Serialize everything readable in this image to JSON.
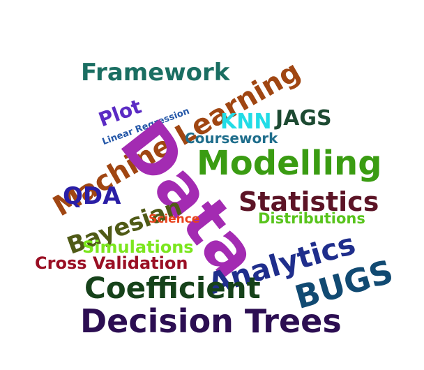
{
  "words": {
    "framework": {
      "text": "Framework",
      "color": "#1a6e62"
    },
    "plot": {
      "text": "Plot",
      "color": "#5b2bc4"
    },
    "linear": {
      "text": "Linear Regression",
      "color": "#2457a8"
    },
    "ml": {
      "text": "Machine Learning",
      "color": "#a04612"
    },
    "knn": {
      "text": "KNN",
      "color": "#22dce6"
    },
    "jags": {
      "text": "JAGS",
      "color": "#1d4a32"
    },
    "coursework": {
      "text": "Coursework",
      "color": "#1f6e8c"
    },
    "modelling": {
      "text": "Modelling",
      "color": "#3a9c12"
    },
    "data": {
      "text": "Data",
      "color": "#a32bb2"
    },
    "qda": {
      "text": "QDA",
      "color": "#2a1ea6"
    },
    "bayesian": {
      "text": "Bayesian",
      "color": "#4f5a16"
    },
    "statistics": {
      "text": "Statistics",
      "color": "#5c1426"
    },
    "science": {
      "text": "Science",
      "color": "#e8421c"
    },
    "distributions": {
      "text": "Distributions",
      "color": "#58c41c"
    },
    "analytics": {
      "text": "Analytics",
      "color": "#1f2e8c"
    },
    "simulations": {
      "text": "Simulations",
      "color": "#7be61e"
    },
    "bugs": {
      "text": "BUGS",
      "color": "#114a72"
    },
    "crossval": {
      "text": "Cross Validation",
      "color": "#9a0f24"
    },
    "coefficient": {
      "text": "Coefficient",
      "color": "#16421a"
    },
    "decision": {
      "text": "Decision Trees",
      "color": "#2c0e52"
    }
  }
}
